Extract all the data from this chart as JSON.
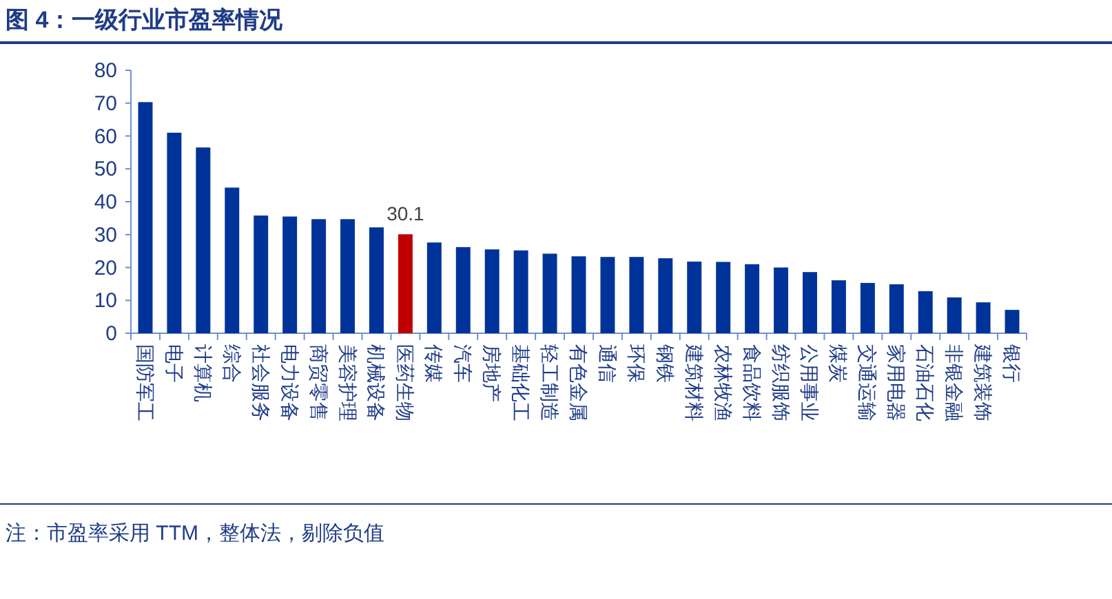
{
  "chart_data": {
    "type": "bar",
    "title": "图 4：一级行业市盈率情况",
    "categories": [
      "国防军工",
      "电子",
      "计算机",
      "综合",
      "社会服务",
      "电力设备",
      "商贸零售",
      "美容护理",
      "机械设备",
      "医药生物",
      "传媒",
      "汽车",
      "房地产",
      "基础化工",
      "轻工制造",
      "有色金属",
      "通信",
      "环保",
      "钢铁",
      "建筑材料",
      "农林牧渔",
      "食品饮料",
      "纺织服饰",
      "公用事业",
      "煤炭",
      "交通运输",
      "家用电器",
      "石油石化",
      "非银金融",
      "建筑装饰",
      "银行"
    ],
    "values": [
      70.3,
      61,
      56.5,
      44.3,
      35.8,
      35.5,
      34.7,
      34.7,
      32.2,
      30.1,
      27.6,
      26.2,
      25.5,
      25.2,
      24.2,
      23.4,
      23.2,
      23.2,
      22.8,
      21.8,
      21.7,
      21.0,
      20.0,
      18.6,
      16.1,
      15.3,
      14.9,
      12.8,
      10.9,
      9.4,
      7.1
    ],
    "colors": [
      "#003399",
      "#003399",
      "#003399",
      "#003399",
      "#003399",
      "#003399",
      "#003399",
      "#003399",
      "#003399",
      "#c00000",
      "#003399",
      "#003399",
      "#003399",
      "#003399",
      "#003399",
      "#003399",
      "#003399",
      "#003399",
      "#003399",
      "#003399",
      "#003399",
      "#003399",
      "#003399",
      "#003399",
      "#003399",
      "#003399",
      "#003399",
      "#003399",
      "#003399",
      "#003399",
      "#003399"
    ],
    "value_labels": [
      null,
      null,
      null,
      null,
      null,
      null,
      null,
      null,
      null,
      "30.1",
      null,
      null,
      null,
      null,
      null,
      null,
      null,
      null,
      null,
      null,
      null,
      null,
      null,
      null,
      null,
      null,
      null,
      null,
      null,
      null,
      null
    ],
    "ylim": [
      0,
      80
    ],
    "yticks": [
      0,
      10,
      20,
      30,
      40,
      50,
      60,
      70,
      80
    ],
    "grid": false,
    "annotations": [
      "注：市盈率采用 TTM，整体法，剔除负值"
    ]
  }
}
